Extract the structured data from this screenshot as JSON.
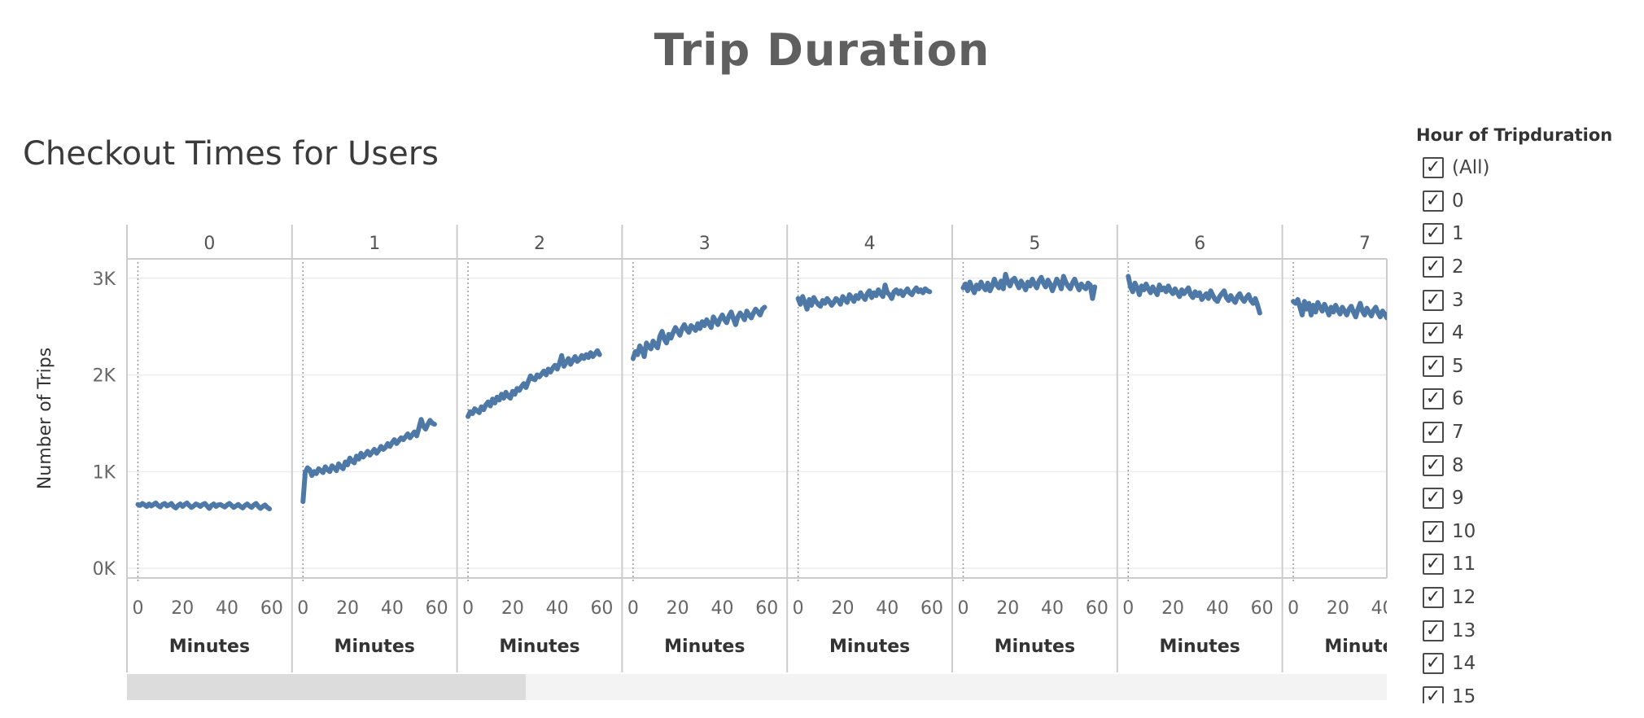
{
  "title": "Trip Duration",
  "sheet_title": "Checkout Times for Users",
  "filter": {
    "title": "Hour of Tripduration",
    "items": [
      "(All)",
      "0",
      "1",
      "2",
      "3",
      "4",
      "5",
      "6",
      "7",
      "8",
      "9",
      "10",
      "11",
      "12",
      "13",
      "14",
      "15"
    ],
    "check_glyph": "✓"
  },
  "colors": {
    "line": "#4e79a7",
    "grid": "#ececec",
    "border": "#cccccc"
  },
  "chart_data": {
    "type": "line",
    "ylabel": "Number of Trips",
    "xlabel": "Minutes",
    "ylim": [
      -100,
      3200
    ],
    "xlim": [
      -2,
      64
    ],
    "y_ticks": [
      0,
      1000,
      2000,
      3000
    ],
    "y_tick_labels": [
      "0K",
      "1K",
      "2K",
      "3K"
    ],
    "x_ticks": [
      0,
      20,
      40,
      60
    ],
    "x_tick_labels": [
      "0",
      "20",
      "40",
      "60"
    ],
    "facets": [
      "0",
      "1",
      "2",
      "3",
      "4",
      "5",
      "6",
      "7"
    ],
    "series": [
      {
        "facet": "0",
        "x_start": 0,
        "x_end": 59,
        "values": [
          660,
          650,
          670,
          655,
          640,
          665,
          645,
          660,
          675,
          650,
          635,
          660,
          670,
          645,
          655,
          670,
          640,
          625,
          650,
          665,
          640,
          660,
          675,
          650,
          630,
          645,
          665,
          655,
          640,
          660,
          670,
          645,
          620,
          650,
          665,
          640,
          655,
          660,
          645,
          635,
          655,
          670,
          650,
          630,
          645,
          660,
          640,
          625,
          650,
          665,
          645,
          630,
          655,
          670,
          640,
          620,
          640,
          655,
          630,
          615
        ]
      },
      {
        "facet": "1",
        "x_start": 0,
        "x_end": 59,
        "values": [
          690,
          990,
          1040,
          1020,
          960,
          1000,
          980,
          1030,
          1010,
          990,
          1050,
          1020,
          1000,
          1060,
          1040,
          1010,
          1080,
          1050,
          1030,
          1100,
          1070,
          1140,
          1110,
          1090,
          1160,
          1130,
          1190,
          1150,
          1180,
          1210,
          1170,
          1200,
          1230,
          1190,
          1220,
          1260,
          1230,
          1250,
          1290,
          1260,
          1300,
          1330,
          1290,
          1320,
          1350,
          1330,
          1360,
          1390,
          1350,
          1380,
          1410,
          1370,
          1450,
          1540,
          1470,
          1440,
          1490,
          1530,
          1500,
          1490
        ]
      },
      {
        "facet": "2",
        "x_start": 0,
        "x_end": 59,
        "values": [
          1570,
          1620,
          1600,
          1650,
          1630,
          1610,
          1670,
          1640,
          1690,
          1720,
          1680,
          1750,
          1710,
          1770,
          1740,
          1800,
          1760,
          1820,
          1780,
          1760,
          1830,
          1800,
          1860,
          1840,
          1880,
          1910,
          1870,
          1930,
          1990,
          1960,
          1950,
          2000,
          1980,
          2010,
          2040,
          2000,
          2060,
          2030,
          2070,
          2100,
          2060,
          2120,
          2200,
          2090,
          2130,
          2170,
          2110,
          2150,
          2190,
          2140,
          2160,
          2200,
          2170,
          2210,
          2180,
          2230,
          2190,
          2220,
          2250,
          2210
        ]
      },
      {
        "facet": "3",
        "x_start": 0,
        "x_end": 59,
        "values": [
          2170,
          2240,
          2210,
          2300,
          2260,
          2190,
          2330,
          2290,
          2270,
          2350,
          2310,
          2280,
          2400,
          2450,
          2370,
          2330,
          2420,
          2380,
          2440,
          2490,
          2450,
          2410,
          2480,
          2520,
          2470,
          2440,
          2510,
          2490,
          2460,
          2530,
          2480,
          2550,
          2510,
          2570,
          2530,
          2490,
          2600,
          2560,
          2520,
          2580,
          2620,
          2570,
          2540,
          2610,
          2650,
          2580,
          2520,
          2600,
          2640,
          2610,
          2570,
          2660,
          2620,
          2590,
          2640,
          2680,
          2650,
          2620,
          2680,
          2700
        ]
      },
      {
        "facet": "4",
        "x_start": 0,
        "x_end": 59,
        "values": [
          2790,
          2730,
          2810,
          2750,
          2680,
          2780,
          2720,
          2800,
          2760,
          2730,
          2710,
          2770,
          2740,
          2790,
          2760,
          2720,
          2750,
          2790,
          2770,
          2730,
          2810,
          2780,
          2750,
          2830,
          2800,
          2760,
          2820,
          2790,
          2850,
          2810,
          2780,
          2840,
          2870,
          2800,
          2850,
          2820,
          2880,
          2840,
          2810,
          2930,
          2850,
          2830,
          2790,
          2860,
          2880,
          2840,
          2870,
          2820,
          2860,
          2890,
          2850,
          2830,
          2870,
          2900,
          2860,
          2880,
          2850,
          2890,
          2870,
          2860
        ]
      },
      {
        "facet": "5",
        "x_start": 0,
        "x_end": 59,
        "values": [
          2900,
          2940,
          2870,
          2960,
          2900,
          2850,
          2930,
          2890,
          2960,
          2910,
          2880,
          2950,
          2870,
          2920,
          2990,
          2930,
          2900,
          2970,
          2890,
          3040,
          2960,
          2920,
          2980,
          3000,
          2950,
          2900,
          2970,
          2930,
          2880,
          2960,
          2920,
          2990,
          2940,
          2900,
          2970,
          3010,
          2950,
          2910,
          2980,
          2940,
          2870,
          2930,
          2990,
          2950,
          2890,
          3020,
          2960,
          2920,
          2890,
          2950,
          2990,
          2930,
          2880,
          2940,
          2910,
          2890,
          2950,
          2930,
          2790,
          2910
        ]
      },
      {
        "facet": "6",
        "x_start": 0,
        "x_end": 59,
        "values": [
          3020,
          2910,
          2860,
          2950,
          2900,
          2830,
          2920,
          2880,
          2940,
          2890,
          2850,
          2910,
          2870,
          2830,
          2930,
          2880,
          2900,
          2860,
          2920,
          2870,
          2840,
          2890,
          2850,
          2810,
          2880,
          2840,
          2870,
          2900,
          2830,
          2800,
          2860,
          2820,
          2850,
          2780,
          2810,
          2840,
          2790,
          2870,
          2820,
          2780,
          2760,
          2810,
          2840,
          2870,
          2800,
          2770,
          2820,
          2780,
          2750,
          2810,
          2840,
          2790,
          2760,
          2800,
          2830,
          2770,
          2740,
          2790,
          2720,
          2640
        ]
      },
      {
        "facet": "7",
        "x_start": 0,
        "x_end": 47,
        "values": [
          2760,
          2740,
          2780,
          2700,
          2620,
          2760,
          2680,
          2740,
          2620,
          2720,
          2650,
          2750,
          2700,
          2660,
          2730,
          2680,
          2620,
          2700,
          2650,
          2720,
          2670,
          2630,
          2700,
          2660,
          2620,
          2680,
          2710,
          2650,
          2600,
          2680,
          2740,
          2660,
          2620,
          2690,
          2650,
          2610,
          2670,
          2700,
          2640,
          2600,
          2660,
          2630,
          2590,
          2650,
          2680,
          2620,
          2580,
          2560
        ]
      }
    ]
  }
}
